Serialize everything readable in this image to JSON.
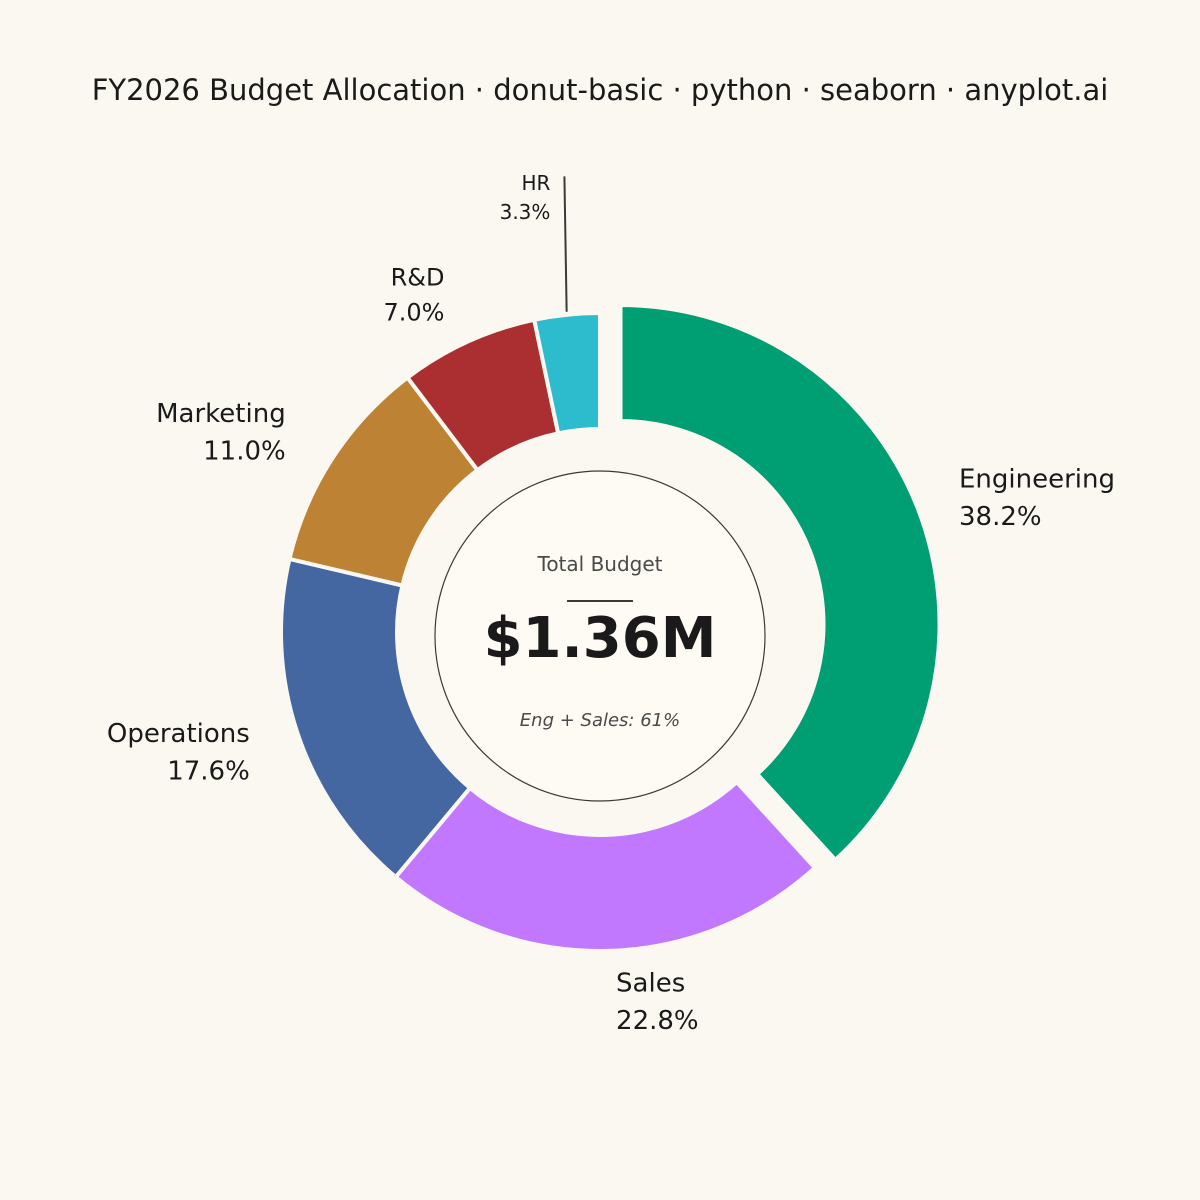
{
  "chart_data": {
    "type": "pie",
    "variant": "donut",
    "title": "FY2026 Budget Allocation · donut-basic · python · seaborn · anyplot.ai",
    "categories": [
      "Engineering",
      "Sales",
      "Operations",
      "Marketing",
      "R&D",
      "HR"
    ],
    "values": [
      38.2,
      22.8,
      17.6,
      11.0,
      7.0,
      3.3
    ],
    "labels": [
      "38.2%",
      "22.8%",
      "17.6%",
      "11.0%",
      "7.0%",
      "3.3%"
    ],
    "colors": [
      "#009E73",
      "#C178FF",
      "#4467A2",
      "#BD8233",
      "#AB2F31",
      "#2CBCCD"
    ],
    "exploded": [
      "Engineering"
    ],
    "start_angle_deg": 90,
    "direction": "clockwise",
    "background": "#FAF8F1",
    "center": {
      "title": "Total Budget",
      "value": "$1.36M",
      "note": "Eng + Sales: 61%"
    }
  }
}
